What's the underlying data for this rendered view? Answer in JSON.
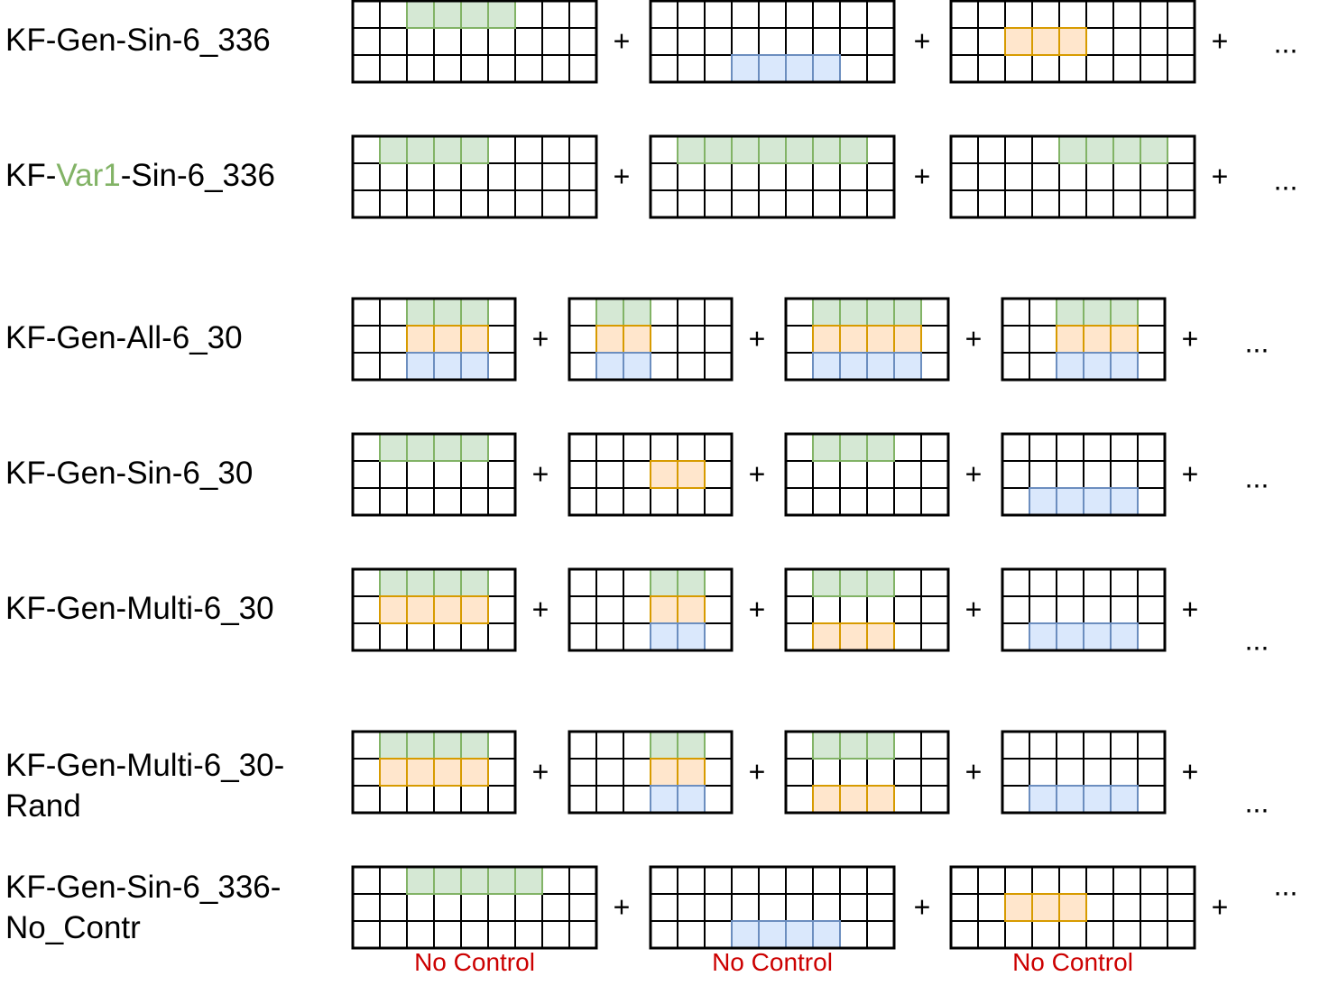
{
  "colors": {
    "green_fill": "#d5e8d4",
    "green_stroke": "#82b366",
    "orange_fill": "#ffe6cc",
    "orange_stroke": "#d79b00",
    "blue_fill": "#dae8fc",
    "blue_stroke": "#6c8ebf",
    "grid_stroke": "#000000",
    "no_control_text": "#cc0000",
    "label_highlight": "#82b366"
  },
  "operators": {
    "plus": "+",
    "ellipsis": "..."
  },
  "rows": [
    {
      "label_parts": [
        {
          "text": "KF-Gen-Sin-6_336"
        }
      ],
      "grids": [
        {
          "cols": 9,
          "marks": [
            {
              "row": 0,
              "start": 2,
              "end": 6,
              "color": "green"
            }
          ]
        },
        {
          "cols": 9,
          "marks": [
            {
              "row": 2,
              "start": 3,
              "end": 7,
              "color": "blue"
            }
          ]
        },
        {
          "cols": 9,
          "marks": [
            {
              "row": 1,
              "start": 2,
              "end": 5,
              "color": "orange"
            }
          ]
        }
      ]
    },
    {
      "label_parts": [
        {
          "text": "KF-"
        },
        {
          "text": "Var1",
          "highlight": true
        },
        {
          "text": "-Sin-6_336"
        }
      ],
      "grids": [
        {
          "cols": 9,
          "marks": [
            {
              "row": 0,
              "start": 1,
              "end": 5,
              "color": "green"
            }
          ]
        },
        {
          "cols": 9,
          "marks": [
            {
              "row": 0,
              "start": 1,
              "end": 8,
              "color": "green"
            }
          ]
        },
        {
          "cols": 9,
          "marks": [
            {
              "row": 0,
              "start": 4,
              "end": 8,
              "color": "green"
            }
          ]
        }
      ]
    },
    {
      "label_parts": [
        {
          "text": "KF-Gen-All-6_30"
        }
      ],
      "grids": [
        {
          "cols": 6,
          "marks": [
            {
              "row": 0,
              "start": 2,
              "end": 5,
              "color": "green"
            },
            {
              "row": 1,
              "start": 2,
              "end": 5,
              "color": "orange"
            },
            {
              "row": 2,
              "start": 2,
              "end": 5,
              "color": "blue"
            }
          ]
        },
        {
          "cols": 6,
          "marks": [
            {
              "row": 0,
              "start": 1,
              "end": 3,
              "color": "green"
            },
            {
              "row": 1,
              "start": 1,
              "end": 3,
              "color": "orange"
            },
            {
              "row": 2,
              "start": 1,
              "end": 3,
              "color": "blue"
            }
          ]
        },
        {
          "cols": 6,
          "marks": [
            {
              "row": 0,
              "start": 1,
              "end": 5,
              "color": "green"
            },
            {
              "row": 1,
              "start": 1,
              "end": 5,
              "color": "orange"
            },
            {
              "row": 2,
              "start": 1,
              "end": 5,
              "color": "blue"
            }
          ]
        },
        {
          "cols": 6,
          "marks": [
            {
              "row": 0,
              "start": 2,
              "end": 5,
              "color": "green"
            },
            {
              "row": 1,
              "start": 2,
              "end": 5,
              "color": "orange"
            },
            {
              "row": 2,
              "start": 2,
              "end": 5,
              "color": "blue"
            }
          ]
        }
      ]
    },
    {
      "label_parts": [
        {
          "text": "KF-Gen-Sin-6_30"
        }
      ],
      "grids": [
        {
          "cols": 6,
          "marks": [
            {
              "row": 0,
              "start": 1,
              "end": 5,
              "color": "green"
            }
          ]
        },
        {
          "cols": 6,
          "marks": [
            {
              "row": 1,
              "start": 3,
              "end": 5,
              "color": "orange"
            }
          ]
        },
        {
          "cols": 6,
          "marks": [
            {
              "row": 0,
              "start": 1,
              "end": 4,
              "color": "green"
            }
          ]
        },
        {
          "cols": 6,
          "marks": [
            {
              "row": 2,
              "start": 1,
              "end": 5,
              "color": "blue"
            }
          ]
        }
      ]
    },
    {
      "label_parts": [
        {
          "text": "KF-Gen-Multi-6_30"
        }
      ],
      "grids": [
        {
          "cols": 6,
          "marks": [
            {
              "row": 0,
              "start": 1,
              "end": 5,
              "color": "green"
            },
            {
              "row": 1,
              "start": 1,
              "end": 5,
              "color": "orange"
            }
          ]
        },
        {
          "cols": 6,
          "marks": [
            {
              "row": 0,
              "start": 3,
              "end": 5,
              "color": "green"
            },
            {
              "row": 1,
              "start": 3,
              "end": 5,
              "color": "orange"
            },
            {
              "row": 2,
              "start": 3,
              "end": 5,
              "color": "blue"
            }
          ]
        },
        {
          "cols": 6,
          "marks": [
            {
              "row": 0,
              "start": 1,
              "end": 4,
              "color": "green"
            },
            {
              "row": 2,
              "start": 1,
              "end": 4,
              "color": "orange"
            }
          ]
        },
        {
          "cols": 6,
          "marks": [
            {
              "row": 2,
              "start": 1,
              "end": 5,
              "color": "blue"
            }
          ]
        }
      ]
    },
    {
      "label_parts": [
        {
          "text": "KF-Gen-Multi-6_30-"
        },
        {
          "text": "Rand",
          "newline": true
        }
      ],
      "grids": [
        {
          "cols": 6,
          "marks": [
            {
              "row": 0,
              "start": 1,
              "end": 5,
              "color": "green"
            },
            {
              "row": 1,
              "start": 1,
              "end": 5,
              "color": "orange"
            }
          ]
        },
        {
          "cols": 6,
          "marks": [
            {
              "row": 0,
              "start": 3,
              "end": 5,
              "color": "green"
            },
            {
              "row": 1,
              "start": 3,
              "end": 5,
              "color": "orange"
            },
            {
              "row": 2,
              "start": 3,
              "end": 5,
              "color": "blue"
            }
          ]
        },
        {
          "cols": 6,
          "marks": [
            {
              "row": 0,
              "start": 1,
              "end": 4,
              "color": "green"
            },
            {
              "row": 2,
              "start": 1,
              "end": 4,
              "color": "orange"
            }
          ]
        },
        {
          "cols": 6,
          "marks": [
            {
              "row": 2,
              "start": 1,
              "end": 5,
              "color": "blue"
            }
          ]
        }
      ]
    },
    {
      "label_parts": [
        {
          "text": "KF-Gen-Sin-6_336-"
        },
        {
          "text": "No_Contr",
          "newline": true
        }
      ],
      "grids": [
        {
          "cols": 9,
          "marks": [
            {
              "row": 0,
              "start": 2,
              "end": 7,
              "color": "green"
            }
          ],
          "caption": "No Control"
        },
        {
          "cols": 9,
          "marks": [
            {
              "row": 2,
              "start": 3,
              "end": 7,
              "color": "blue"
            }
          ],
          "caption": "No Control"
        },
        {
          "cols": 9,
          "marks": [
            {
              "row": 1,
              "start": 2,
              "end": 5,
              "color": "orange"
            }
          ],
          "caption": "No Control"
        }
      ]
    }
  ]
}
